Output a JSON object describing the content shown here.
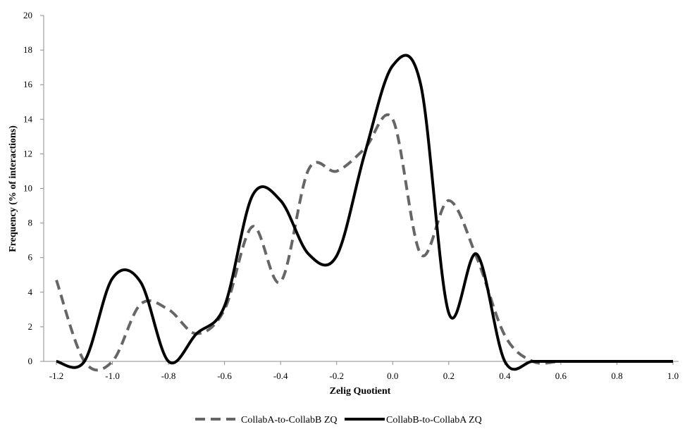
{
  "chart_data": {
    "type": "line",
    "title": "",
    "xlabel": "Zelig Quotient",
    "ylabel": "Frequency (% of interactions)",
    "xlim": [
      -1.2,
      1.0
    ],
    "ylim": [
      0,
      20
    ],
    "x_ticks": [
      "-1.2",
      "-1.0",
      "-0.8",
      "-0.6",
      "-0.4",
      "-0.2",
      "0.0",
      "0.2",
      "0.4",
      "0.6",
      "0.8",
      "1.0"
    ],
    "y_ticks": [
      "0",
      "2",
      "4",
      "6",
      "8",
      "10",
      "12",
      "14",
      "16",
      "18",
      "20"
    ],
    "grid": false,
    "legend_position": "bottom",
    "x": [
      -1.2,
      -1.1,
      -1.0,
      -0.9,
      -0.8,
      -0.7,
      -0.6,
      -0.5,
      -0.4,
      -0.3,
      -0.2,
      -0.1,
      0.0,
      0.1,
      0.2,
      0.3,
      0.4,
      0.5,
      0.6,
      0.7,
      0.8,
      0.9,
      1.0
    ],
    "series": [
      {
        "name": "CollabA-to-CollabB ZQ",
        "style": "dashed",
        "color": "#666666",
        "values": [
          4.7,
          0.0,
          0.0,
          3.3,
          3.0,
          1.6,
          3.0,
          7.8,
          4.6,
          11.1,
          11.0,
          12.3,
          14.0,
          6.2,
          9.3,
          6.0,
          1.5,
          0.0,
          0.0,
          0.0,
          0.0,
          0.0,
          0.0
        ]
      },
      {
        "name": "CollabB-to-CollabA ZQ",
        "style": "solid",
        "color": "#000000",
        "values": [
          0.0,
          0.0,
          4.8,
          4.6,
          0.0,
          1.6,
          3.2,
          9.6,
          9.3,
          6.2,
          6.1,
          12.0,
          17.1,
          16.0,
          2.8,
          6.2,
          0.0,
          0.0,
          0.0,
          0.0,
          0.0,
          0.0,
          0.0
        ]
      }
    ]
  }
}
